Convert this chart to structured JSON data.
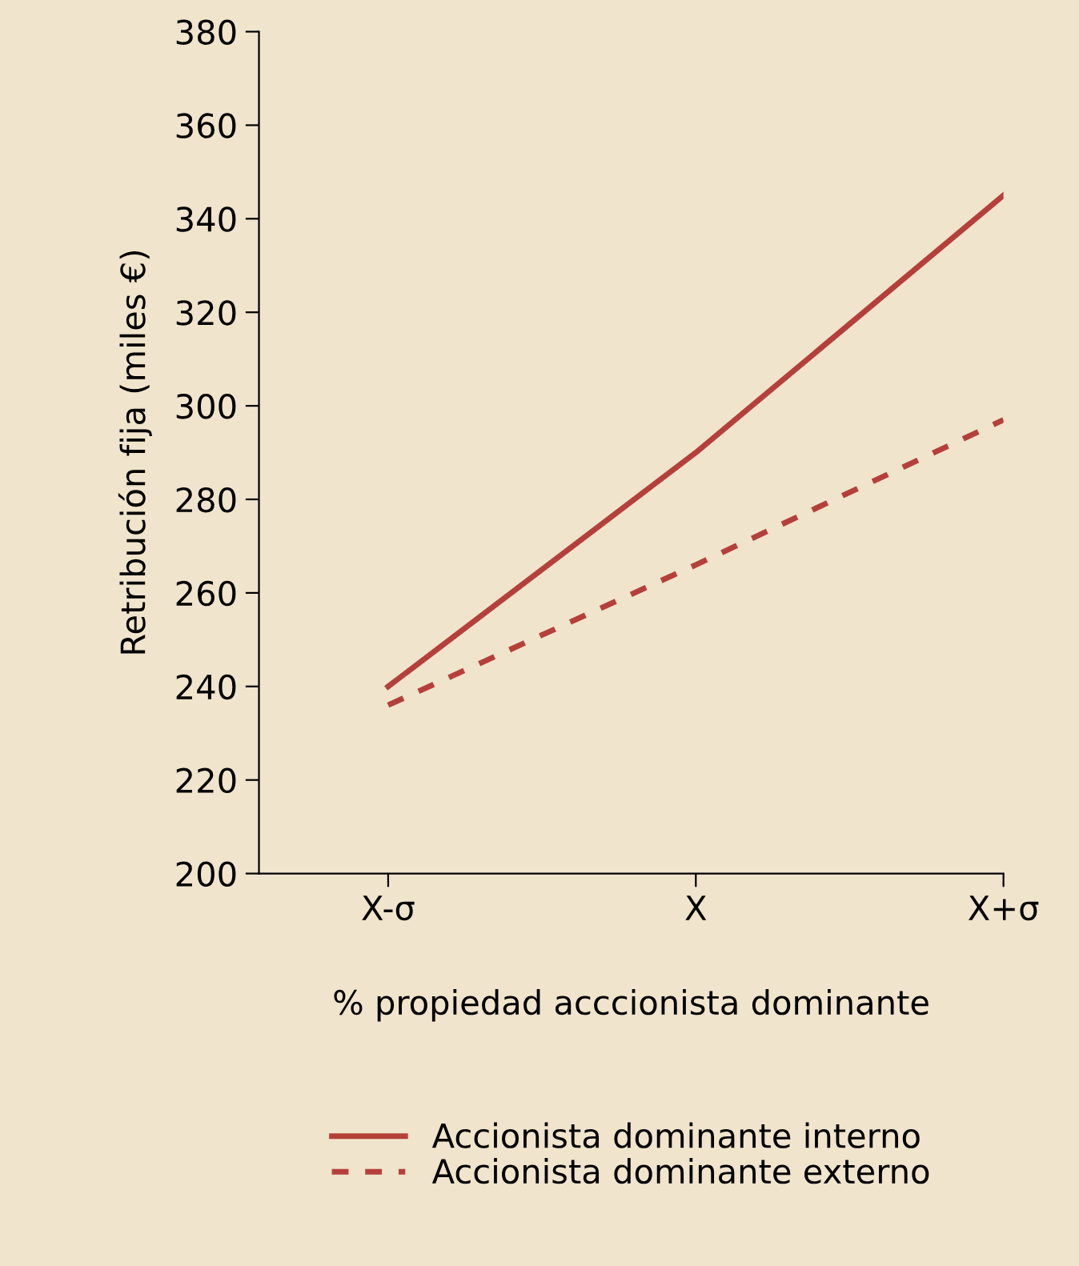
{
  "chart_data": {
    "type": "line",
    "xlabel": "% propiedad acccionista dominante",
    "ylabel": "Retribución fija (miles €)",
    "categories": [
      "X-σ",
      "X",
      "X+σ"
    ],
    "series": [
      {
        "name": "Accionista dominante interno",
        "color": "#b5403a",
        "values": [
          240,
          290,
          345
        ],
        "line_style": "solid"
      },
      {
        "name": "Accionista dominante externo",
        "color": "#b5403a",
        "values": [
          236,
          266,
          297
        ],
        "line_style": "dashed"
      }
    ],
    "ylim": [
      200,
      380
    ],
    "yticks": [
      200,
      220,
      240,
      260,
      280,
      300,
      320,
      340,
      360,
      380
    ],
    "grid": false,
    "legend": "bottom",
    "marker": "none"
  }
}
